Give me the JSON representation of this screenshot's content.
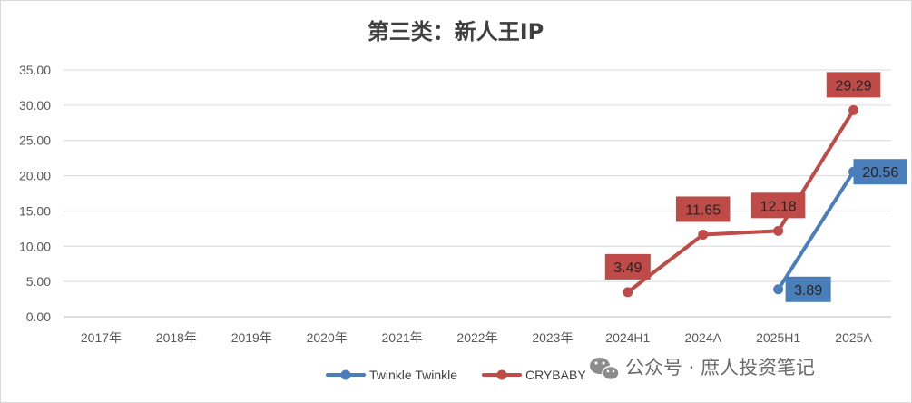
{
  "chart_data": {
    "type": "line",
    "title": "第三类：新人王IP",
    "categories": [
      "2017年",
      "2018年",
      "2019年",
      "2020年",
      "2021年",
      "2022年",
      "2023年",
      "2024H1",
      "2024A",
      "2025H1",
      "2025A"
    ],
    "ylim": [
      0,
      35
    ],
    "yticks": [
      "0.00",
      "5.00",
      "10.00",
      "15.00",
      "20.00",
      "25.00",
      "30.00",
      "35.00"
    ],
    "grid": true,
    "legend_position": "bottom",
    "series": [
      {
        "name": "Twinkle Twinkle",
        "color": "#4a7ebb",
        "values": [
          null,
          null,
          null,
          null,
          null,
          null,
          null,
          null,
          null,
          3.89,
          20.56
        ],
        "labels": [
          null,
          null,
          null,
          null,
          null,
          null,
          null,
          null,
          null,
          "3.89",
          "20.56"
        ]
      },
      {
        "name": "CRYBABY",
        "color": "#be4b48",
        "values": [
          null,
          null,
          null,
          null,
          null,
          null,
          null,
          3.49,
          11.65,
          12.18,
          29.29
        ],
        "labels": [
          null,
          null,
          null,
          null,
          null,
          null,
          null,
          "3.49",
          "11.65",
          "12.18",
          "29.29"
        ]
      }
    ]
  },
  "watermark": {
    "icon": "wechat-icon",
    "text": "公众号 · 庶人投资笔记"
  }
}
